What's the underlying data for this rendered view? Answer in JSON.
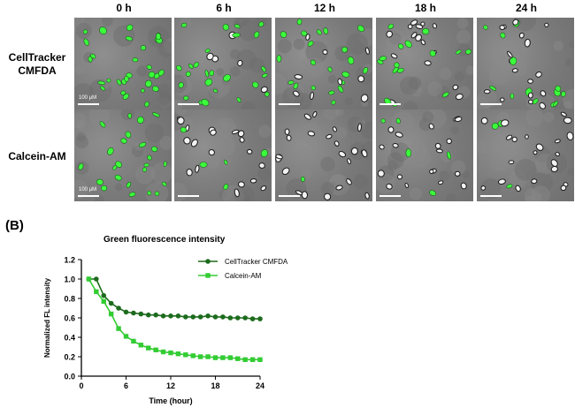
{
  "figure": {
    "time_labels": [
      "0 h",
      "6 h",
      "12 h",
      "18 h",
      "24 h"
    ],
    "row_labels": [
      {
        "line1": "CellTracker",
        "line2": "CMFDA"
      },
      {
        "line1": "Calcein-AM",
        "line2": ""
      }
    ],
    "scale_bar_label": "100 μM",
    "panel_b_letter": "(B)",
    "panel_green_fraction": [
      [
        1.0,
        0.75,
        0.7,
        0.6,
        0.6
      ],
      [
        1.0,
        0.2,
        0.15,
        0.12,
        0.1
      ]
    ],
    "colors": {
      "cmfda": "#1d6b1d",
      "calcein": "#33cc33",
      "cell_green": "#3cff3c",
      "panel_bg": "#7d7d7d"
    }
  },
  "chart_data": {
    "type": "line",
    "title": "Green fluorescence intensity",
    "xlabel": "Time (hour)",
    "ylabel": "Normalized  FL intensity",
    "xlim": [
      0,
      24
    ],
    "ylim": [
      0.0,
      1.2
    ],
    "xticks": [
      0,
      6,
      12,
      18,
      24
    ],
    "yticks": [
      0.0,
      0.2,
      0.4,
      0.6,
      0.8,
      1.0,
      1.2
    ],
    "x": [
      1,
      2,
      3,
      4,
      5,
      6,
      7,
      8,
      9,
      10,
      11,
      12,
      13,
      14,
      15,
      16,
      17,
      18,
      19,
      20,
      21,
      22,
      23,
      24
    ],
    "series": [
      {
        "name": "CellTracker CMFDA",
        "marker": "circle",
        "color": "#1d6b1d",
        "values": [
          1.0,
          1.0,
          0.83,
          0.75,
          0.7,
          0.66,
          0.65,
          0.64,
          0.63,
          0.63,
          0.62,
          0.62,
          0.62,
          0.61,
          0.61,
          0.61,
          0.62,
          0.61,
          0.61,
          0.6,
          0.6,
          0.6,
          0.59,
          0.59
        ]
      },
      {
        "name": "Calcein-AM",
        "marker": "square",
        "color": "#33cc33",
        "values": [
          1.0,
          0.87,
          0.77,
          0.64,
          0.49,
          0.41,
          0.36,
          0.32,
          0.29,
          0.27,
          0.25,
          0.24,
          0.23,
          0.22,
          0.21,
          0.2,
          0.2,
          0.19,
          0.19,
          0.19,
          0.18,
          0.17,
          0.17,
          0.17
        ]
      }
    ],
    "legend_position": "top-right"
  }
}
